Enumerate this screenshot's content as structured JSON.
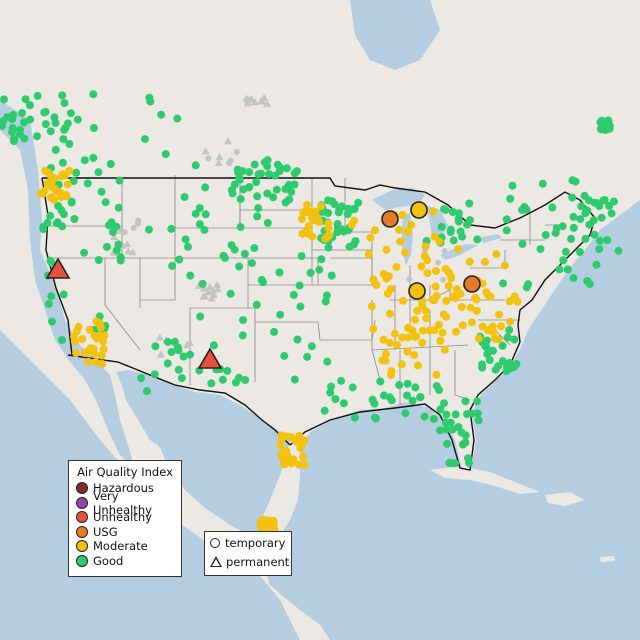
{
  "legend_aqi": {
    "title": "Air Quality Index",
    "items": [
      {
        "label": "Hazardous",
        "color": "#7e2c25"
      },
      {
        "label": "Very Unhealthy",
        "color": "#8e4ba3"
      },
      {
        "label": "Unhealthy",
        "color": "#e8503a"
      },
      {
        "label": "USG",
        "color": "#e37b28"
      },
      {
        "label": "Moderate",
        "color": "#f2c20f"
      },
      {
        "label": "Good",
        "color": "#2ecb6e"
      }
    ]
  },
  "legend_monitor_type": {
    "items": [
      {
        "label": "temporary",
        "icon": "circle-outline-icon"
      },
      {
        "label": "permanent",
        "icon": "triangle-outline-icon"
      }
    ]
  },
  "map": {
    "region": "Contiguous United States with Canada and Mexico",
    "colors": {
      "ocean": "#b5cde0",
      "land": "#ece8e3",
      "no_data": "#c4c4c4",
      "state_border": "#8a8a8a",
      "country_border": "#111111"
    }
  }
}
